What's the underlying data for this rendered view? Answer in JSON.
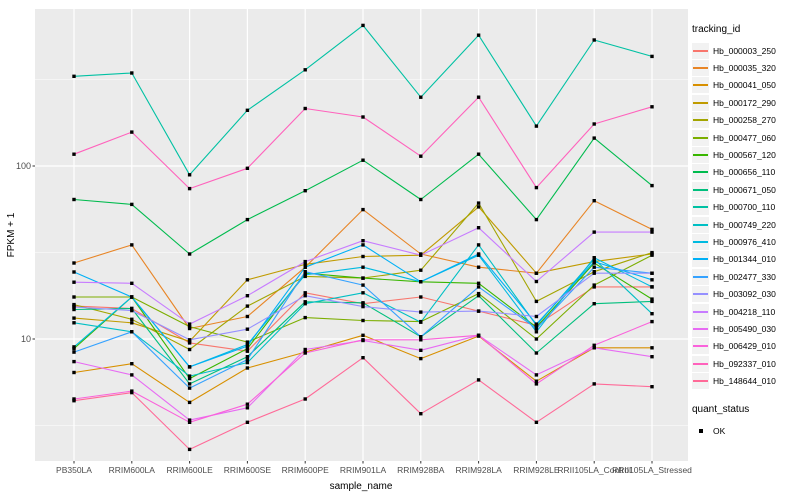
{
  "figure": {
    "y_axis_title": "FPKM + 1",
    "x_axis_title": "sample_name"
  },
  "legend": {
    "tracking_title": "tracking_id",
    "quant_title": "quant_status",
    "quant_items": [
      {
        "label": "OK"
      }
    ]
  },
  "chart_data": {
    "type": "line",
    "title": "",
    "xlabel": "sample_name",
    "ylabel": "FPKM + 1",
    "y_scale": "log10",
    "y_ticks": [
      10,
      100
    ],
    "y_range_approx": [
      2,
      800
    ],
    "grid": true,
    "legend_position": "right",
    "panel_bg": "#EBEBEB",
    "grid_color": "#FFFFFF",
    "point_marker": {
      "shape": "square",
      "color": "#000000",
      "legend_label": "OK"
    },
    "categories": [
      "PB350LA",
      "RRIM600LA",
      "RRIM600LE",
      "RRIM600SE",
      "RRIM600PE",
      "RRIM901LA",
      "RRIM928BA",
      "RRIM928LA",
      "RRIM928LE",
      "RRII105LA_Control",
      "RRII105LA_Stressed"
    ],
    "series": [
      {
        "name": "Hb_000003_250",
        "color": "#F8766D",
        "values": [
          15.5,
          15,
          9.5,
          8.5,
          18.5,
          16,
          17.5,
          14.5,
          12,
          20,
          20
        ]
      },
      {
        "name": "Hb_000035_320",
        "color": "#E88526",
        "values": [
          27.5,
          35,
          11.5,
          13.5,
          26,
          56,
          31,
          26,
          24,
          63,
          43
        ]
      },
      {
        "name": "Hb_000041_050",
        "color": "#D89000",
        "values": [
          6.4,
          7.2,
          4.3,
          6.8,
          8.4,
          10.5,
          7.7,
          10.4,
          5.7,
          8.9,
          8.9
        ]
      },
      {
        "name": "Hb_000172_290",
        "color": "#C09B00",
        "values": [
          13.2,
          12.4,
          9.7,
          22,
          27,
          30,
          30.5,
          58,
          24,
          28,
          31
        ]
      },
      {
        "name": "Hb_000258_270",
        "color": "#A3A500",
        "values": [
          15.8,
          13,
          8.7,
          15.5,
          23,
          22.5,
          25,
          61,
          16.5,
          24.5,
          31.6
        ]
      },
      {
        "name": "Hb_000477_060",
        "color": "#7CAE00",
        "values": [
          17.5,
          17.5,
          11.8,
          9.6,
          13.3,
          12.8,
          12.6,
          18.3,
          10,
          20.5,
          30.5
        ]
      },
      {
        "name": "Hb_000567_120",
        "color": "#39B600",
        "values": [
          8.8,
          17.5,
          5.9,
          8.8,
          24,
          22.5,
          21.4,
          21,
          11.7,
          27.5,
          17
        ]
      },
      {
        "name": "Hb_000656_110",
        "color": "#00BB4E",
        "values": [
          64,
          60,
          31,
          49,
          72,
          108,
          64,
          117,
          49,
          145,
          77
        ]
      },
      {
        "name": "Hb_000671_050",
        "color": "#00BF7D",
        "values": [
          14.8,
          15,
          5.5,
          7.9,
          16.4,
          16.2,
          10.3,
          17.8,
          8.3,
          16,
          16.5
        ]
      },
      {
        "name": "Hb_000700_110",
        "color": "#00C1A3",
        "values": [
          330,
          345,
          89,
          210,
          360,
          650,
          250,
          570,
          170,
          535,
          430
        ]
      },
      {
        "name": "Hb_000749_220",
        "color": "#00BFC4",
        "values": [
          12.4,
          11,
          6.1,
          7.3,
          16,
          18.5,
          12.5,
          35,
          12,
          29,
          14
        ]
      },
      {
        "name": "Hb_000976_410",
        "color": "#00BAE0",
        "values": [
          9,
          17.5,
          6.9,
          9.3,
          23.5,
          26,
          21.4,
          30.5,
          11,
          29.5,
          20
        ]
      },
      {
        "name": "Hb_001344_010",
        "color": "#00B0F6",
        "values": [
          24.4,
          17.5,
          6.9,
          9.1,
          26,
          35,
          21.4,
          31,
          12.2,
          28,
          22
        ]
      },
      {
        "name": "Hb_002477_330",
        "color": "#35A2FF",
        "values": [
          8.4,
          11,
          5.2,
          7.6,
          24.5,
          20.5,
          10.3,
          20,
          11.5,
          26,
          24
        ]
      },
      {
        "name": "Hb_003092_030",
        "color": "#9590FF",
        "values": [
          15.3,
          14.6,
          9.9,
          11.4,
          17.8,
          15.4,
          14.3,
          14.5,
          13.5,
          24,
          24
        ]
      },
      {
        "name": "Hb_004218_110",
        "color": "#C77CFF",
        "values": [
          21.3,
          21,
          12.2,
          17.8,
          28,
          37,
          30.5,
          44,
          21.5,
          41.5,
          41.5
        ]
      },
      {
        "name": "Hb_005490_030",
        "color": "#E76BF3",
        "values": [
          7.4,
          6.2,
          3.4,
          4.0,
          8.7,
          9.8,
          8.6,
          10.5,
          6.2,
          8.9,
          7.9
        ]
      },
      {
        "name": "Hb_006429_010",
        "color": "#FA62DB",
        "values": [
          4.5,
          5.0,
          3.3,
          4.2,
          8.3,
          9.9,
          9.9,
          10.5,
          5.5,
          9.2,
          12.6
        ]
      },
      {
        "name": "Hb_092337_010",
        "color": "#FF62BC",
        "values": [
          117,
          157,
          74,
          97,
          215,
          192,
          114,
          250,
          75,
          175,
          220
        ]
      },
      {
        "name": "Hb_148644_010",
        "color": "#FF6A98",
        "values": [
          4.4,
          4.9,
          2.3,
          3.3,
          4.5,
          7.8,
          3.7,
          5.8,
          3.3,
          5.5,
          5.3
        ]
      }
    ]
  }
}
